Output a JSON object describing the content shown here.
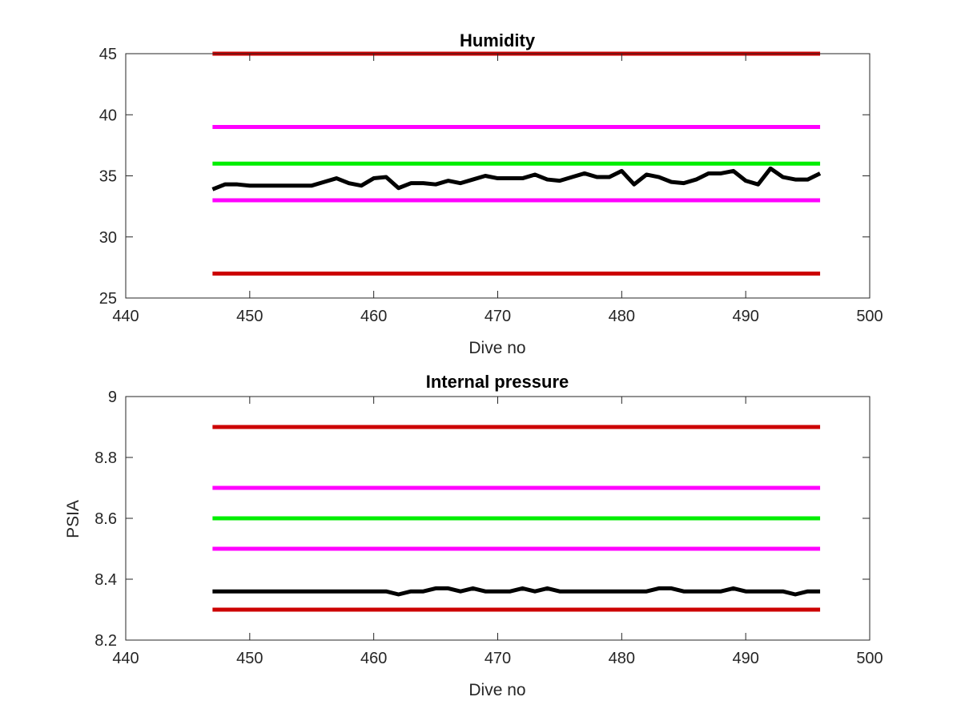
{
  "chart_data": [
    {
      "type": "line",
      "title": "Humidity",
      "xlabel": "Dive no",
      "ylabel": "",
      "xlim": [
        440,
        500
      ],
      "ylim": [
        25,
        45
      ],
      "xticks": [
        440,
        450,
        460,
        470,
        480,
        490,
        500
      ],
      "yticks": [
        25,
        30,
        35,
        40,
        45
      ],
      "grid": false,
      "thresholds": [
        {
          "value": 45,
          "color": "#cc0000"
        },
        {
          "value": 39,
          "color": "#ff00ff"
        },
        {
          "value": 36,
          "color": "#00ee00"
        },
        {
          "value": 33,
          "color": "#ff00ff"
        },
        {
          "value": 27,
          "color": "#cc0000"
        }
      ],
      "threshold_x": [
        447,
        496
      ],
      "series": [
        {
          "color": "#000000",
          "x": [
            447,
            448,
            449,
            450,
            451,
            452,
            453,
            454,
            455,
            456,
            457,
            458,
            459,
            460,
            461,
            462,
            463,
            464,
            465,
            466,
            467,
            468,
            469,
            470,
            471,
            472,
            473,
            474,
            475,
            476,
            477,
            478,
            479,
            480,
            481,
            482,
            483,
            484,
            485,
            486,
            487,
            488,
            489,
            490,
            491,
            492,
            493,
            494,
            495,
            496
          ],
          "y": [
            33.9,
            34.3,
            34.3,
            34.2,
            34.2,
            34.2,
            34.2,
            34.2,
            34.2,
            34.5,
            34.8,
            34.4,
            34.2,
            34.8,
            34.9,
            34.0,
            34.4,
            34.4,
            34.3,
            34.6,
            34.4,
            34.7,
            35.0,
            34.8,
            34.8,
            34.8,
            35.1,
            34.7,
            34.6,
            34.9,
            35.2,
            34.9,
            34.9,
            35.4,
            34.3,
            35.1,
            34.9,
            34.5,
            34.4,
            34.7,
            35.2,
            35.2,
            35.4,
            34.6,
            34.3,
            35.6,
            34.9,
            34.7,
            34.7,
            35.2
          ]
        }
      ]
    },
    {
      "type": "line",
      "title": "Internal pressure",
      "xlabel": "Dive no",
      "ylabel": "PSIA",
      "xlim": [
        440,
        500
      ],
      "ylim": [
        8.2,
        9
      ],
      "xticks": [
        440,
        450,
        460,
        470,
        480,
        490,
        500
      ],
      "yticks": [
        8.2,
        8.4,
        8.6,
        8.8,
        9
      ],
      "ytick_labels": [
        "8.2",
        "8.4",
        "8.6",
        "8.8",
        "9"
      ],
      "grid": false,
      "thresholds": [
        {
          "value": 8.9,
          "color": "#cc0000"
        },
        {
          "value": 8.7,
          "color": "#ff00ff"
        },
        {
          "value": 8.6,
          "color": "#00ee00"
        },
        {
          "value": 8.5,
          "color": "#ff00ff"
        },
        {
          "value": 8.3,
          "color": "#cc0000"
        }
      ],
      "threshold_x": [
        447,
        496
      ],
      "series": [
        {
          "color": "#000000",
          "x": [
            447,
            448,
            449,
            450,
            451,
            452,
            453,
            454,
            455,
            456,
            457,
            458,
            459,
            460,
            461,
            462,
            463,
            464,
            465,
            466,
            467,
            468,
            469,
            470,
            471,
            472,
            473,
            474,
            475,
            476,
            477,
            478,
            479,
            480,
            481,
            482,
            483,
            484,
            485,
            486,
            487,
            488,
            489,
            490,
            491,
            492,
            493,
            494,
            495,
            496
          ],
          "y": [
            8.36,
            8.36,
            8.36,
            8.36,
            8.36,
            8.36,
            8.36,
            8.36,
            8.36,
            8.36,
            8.36,
            8.36,
            8.36,
            8.36,
            8.36,
            8.35,
            8.36,
            8.36,
            8.37,
            8.37,
            8.36,
            8.37,
            8.36,
            8.36,
            8.36,
            8.37,
            8.36,
            8.37,
            8.36,
            8.36,
            8.36,
            8.36,
            8.36,
            8.36,
            8.36,
            8.36,
            8.37,
            8.37,
            8.36,
            8.36,
            8.36,
            8.36,
            8.37,
            8.36,
            8.36,
            8.36,
            8.36,
            8.35,
            8.36,
            8.36
          ]
        }
      ]
    }
  ]
}
